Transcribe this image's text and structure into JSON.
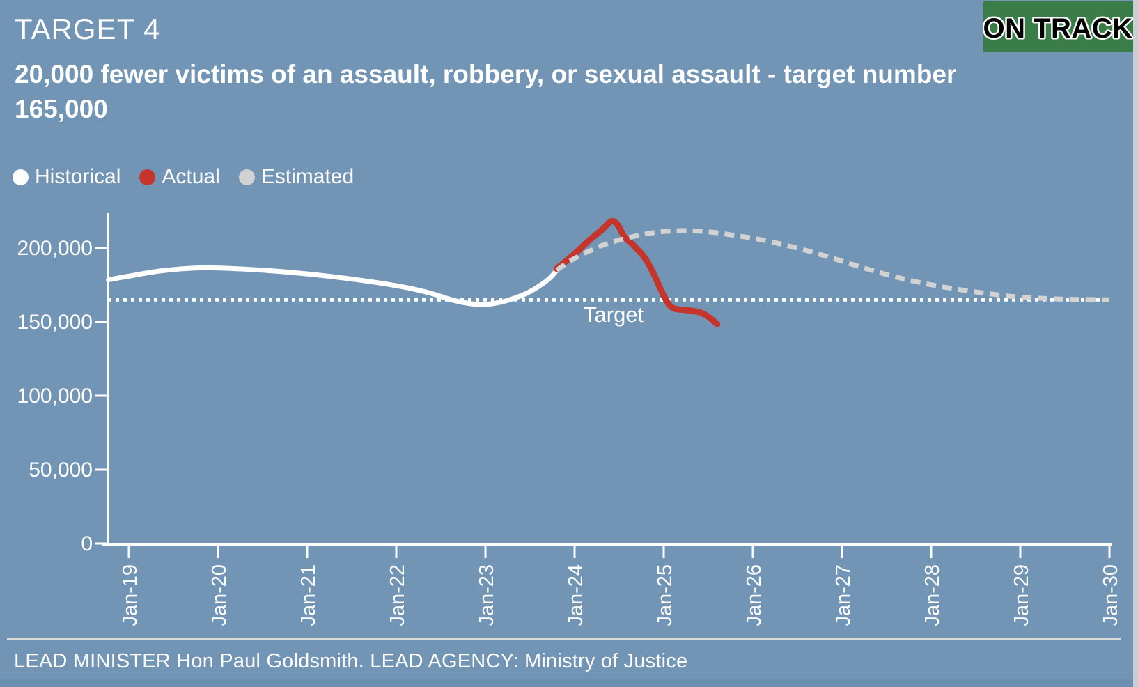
{
  "page": {
    "title": "TARGET 4",
    "status_badge": "ON TRACK",
    "subtitle": "20,000 fewer victims of an assault, robbery, or sexual assault - target number 165,000",
    "footer": "LEAD MINISTER Hon Paul Goldsmith. LEAD AGENCY: Ministry of Justice"
  },
  "colors": {
    "background": "#7295b5",
    "badge_green": "#3b7d48",
    "historical_white": "#ffffff",
    "actual_red": "#c5352b",
    "estimated_gray": "#d2d2d2",
    "axis_white": "#ffffff",
    "footer_strip": "#6b8fb0",
    "edge_strip": "#c9ced3"
  },
  "legend": [
    {
      "label": "Historical",
      "color": "#ffffff"
    },
    {
      "label": "Actual",
      "color": "#c5352b"
    },
    {
      "label": "Estimated",
      "color": "#d2d2d2"
    }
  ],
  "chart_data": {
    "type": "line",
    "title": "",
    "xlabel": "",
    "ylabel": "",
    "grid": false,
    "legend_position": "top-left",
    "xlim": [
      2018.77,
      2030
    ],
    "ylim": [
      0,
      215000
    ],
    "x_ticks": [
      "Jan-19",
      "Jan-20",
      "Jan-21",
      "Jan-22",
      "Jan-23",
      "Jan-24",
      "Jan-25",
      "Jan-26",
      "Jan-27",
      "Jan-28",
      "Jan-29",
      "Jan-30"
    ],
    "x_tick_years": [
      2019,
      2020,
      2021,
      2022,
      2023,
      2024,
      2025,
      2026,
      2027,
      2028,
      2029,
      2030
    ],
    "y_ticks": [
      0,
      50000,
      100000,
      150000,
      200000
    ],
    "y_tick_labels": [
      "0",
      "50,000",
      "100,000",
      "150,000",
      "200,000"
    ],
    "target_line": {
      "value": 165000,
      "label": "Target"
    },
    "series": [
      {
        "name": "Historical",
        "style": "solid",
        "color": "#ffffff",
        "points": [
          [
            2018.77,
            178500
          ],
          [
            2019.0,
            181000
          ],
          [
            2019.35,
            184500
          ],
          [
            2019.7,
            186300
          ],
          [
            2020.0,
            186500
          ],
          [
            2020.5,
            185000
          ],
          [
            2021.0,
            182500
          ],
          [
            2021.5,
            179000
          ],
          [
            2022.0,
            174500
          ],
          [
            2022.35,
            170000
          ],
          [
            2022.65,
            164500
          ],
          [
            2022.9,
            161900
          ],
          [
            2023.1,
            162500
          ],
          [
            2023.3,
            165500
          ],
          [
            2023.5,
            170500
          ],
          [
            2023.7,
            178500
          ],
          [
            2023.8,
            185000
          ]
        ]
      },
      {
        "name": "Actual",
        "style": "solid",
        "color": "#c5352b",
        "points": [
          [
            2023.8,
            186000
          ],
          [
            2024.0,
            196000
          ],
          [
            2024.15,
            204500
          ],
          [
            2024.3,
            212000
          ],
          [
            2024.41,
            218000
          ],
          [
            2024.48,
            216000
          ],
          [
            2024.56,
            207500
          ],
          [
            2024.65,
            202500
          ],
          [
            2024.78,
            194000
          ],
          [
            2024.88,
            183500
          ],
          [
            2024.97,
            171500
          ],
          [
            2025.05,
            162500
          ],
          [
            2025.12,
            159000
          ],
          [
            2025.25,
            158000
          ],
          [
            2025.4,
            156500
          ],
          [
            2025.5,
            153500
          ],
          [
            2025.6,
            148500
          ]
        ]
      },
      {
        "name": "Estimated",
        "style": "dashed",
        "color": "#d2d2d2",
        "points": [
          [
            2023.8,
            185000
          ],
          [
            2024.0,
            193000
          ],
          [
            2024.3,
            201500
          ],
          [
            2024.6,
            207000
          ],
          [
            2024.9,
            210500
          ],
          [
            2025.2,
            211800
          ],
          [
            2025.5,
            211000
          ],
          [
            2025.8,
            208500
          ],
          [
            2026.1,
            205500
          ],
          [
            2026.5,
            200000
          ],
          [
            2026.9,
            193000
          ],
          [
            2027.3,
            185500
          ],
          [
            2027.7,
            179000
          ],
          [
            2028.1,
            174000
          ],
          [
            2028.5,
            170300
          ],
          [
            2028.9,
            167300
          ],
          [
            2029.3,
            165800
          ],
          [
            2029.6,
            165300
          ],
          [
            2030.0,
            165000
          ]
        ]
      }
    ]
  }
}
